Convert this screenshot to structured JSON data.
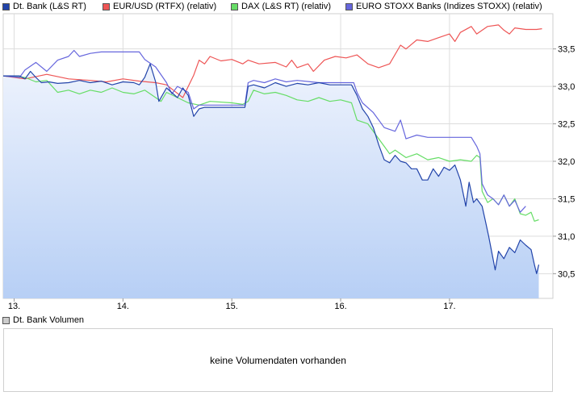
{
  "legend": [
    {
      "label": "Dt. Bank (L&S RT)",
      "color": "#2244aa"
    },
    {
      "label": "EUR/USD (RTFX) (relativ)",
      "color": "#ee5555"
    },
    {
      "label": "DAX (L&S RT) (relativ)",
      "color": "#66dd66"
    },
    {
      "label": "EURO STOXX Banks (Indizes STOXX) (relativ)",
      "color": "#6666dd"
    }
  ],
  "volume": {
    "legend_label": "Dt. Bank Volumen",
    "message": "keine Volumendaten vorhanden"
  },
  "chart_data": {
    "type": "line",
    "x_ticks": [
      "13.",
      "14.",
      "15.",
      "16.",
      "17."
    ],
    "y_ticks": [
      "30,5",
      "31,0",
      "31,5",
      "32,0",
      "32,5",
      "33,0",
      "33,5"
    ],
    "ylim": [
      30.17,
      33.97
    ],
    "xlim": [
      12.9,
      17.95
    ],
    "grid": true,
    "series": [
      {
        "name": "Dt. Bank (L&S RT)",
        "color": "#2244aa",
        "area": true,
        "points": [
          [
            12.9,
            33.14
          ],
          [
            13.05,
            33.14
          ],
          [
            13.1,
            33.1
          ],
          [
            13.15,
            33.2
          ],
          [
            13.2,
            33.12
          ],
          [
            13.25,
            33.05
          ],
          [
            13.32,
            33.06
          ],
          [
            13.4,
            33.04
          ],
          [
            13.5,
            33.05
          ],
          [
            13.6,
            33.08
          ],
          [
            13.7,
            33.05
          ],
          [
            13.8,
            33.07
          ],
          [
            13.9,
            33.02
          ],
          [
            14.0,
            33.06
          ],
          [
            14.1,
            33.05
          ],
          [
            14.15,
            33.02
          ],
          [
            14.2,
            33.12
          ],
          [
            14.25,
            33.3
          ],
          [
            14.3,
            33.06
          ],
          [
            14.33,
            32.8
          ],
          [
            14.4,
            32.98
          ],
          [
            14.5,
            32.85
          ],
          [
            14.55,
            32.98
          ],
          [
            14.6,
            32.88
          ],
          [
            14.65,
            32.6
          ],
          [
            14.7,
            32.7
          ],
          [
            14.75,
            32.72
          ],
          [
            14.85,
            32.72
          ],
          [
            15.0,
            32.72
          ],
          [
            15.12,
            32.72
          ],
          [
            15.15,
            33.0
          ],
          [
            15.2,
            33.02
          ],
          [
            15.3,
            32.98
          ],
          [
            15.4,
            33.05
          ],
          [
            15.5,
            33.0
          ],
          [
            15.6,
            33.04
          ],
          [
            15.7,
            33.02
          ],
          [
            15.8,
            33.05
          ],
          [
            15.9,
            33.02
          ],
          [
            16.0,
            33.02
          ],
          [
            16.1,
            33.02
          ],
          [
            16.15,
            32.88
          ],
          [
            16.2,
            32.7
          ],
          [
            16.25,
            32.6
          ],
          [
            16.3,
            32.45
          ],
          [
            16.35,
            32.22
          ],
          [
            16.4,
            32.02
          ],
          [
            16.45,
            31.98
          ],
          [
            16.5,
            32.08
          ],
          [
            16.55,
            32.0
          ],
          [
            16.6,
            31.98
          ],
          [
            16.65,
            31.9
          ],
          [
            16.7,
            31.9
          ],
          [
            16.75,
            31.75
          ],
          [
            16.8,
            31.75
          ],
          [
            16.85,
            31.9
          ],
          [
            16.9,
            31.8
          ],
          [
            16.95,
            31.92
          ],
          [
            17.0,
            31.88
          ],
          [
            17.05,
            31.95
          ],
          [
            17.1,
            31.75
          ],
          [
            17.15,
            31.4
          ],
          [
            17.18,
            31.72
          ],
          [
            17.22,
            31.45
          ],
          [
            17.25,
            31.5
          ],
          [
            17.3,
            31.4
          ],
          [
            17.33,
            31.2
          ],
          [
            17.36,
            31.0
          ],
          [
            17.4,
            30.7
          ],
          [
            17.42,
            30.55
          ],
          [
            17.45,
            30.8
          ],
          [
            17.5,
            30.7
          ],
          [
            17.55,
            30.85
          ],
          [
            17.6,
            30.78
          ],
          [
            17.65,
            30.95
          ],
          [
            17.7,
            30.88
          ],
          [
            17.75,
            30.82
          ],
          [
            17.78,
            30.62
          ],
          [
            17.8,
            30.5
          ],
          [
            17.82,
            30.62
          ]
        ]
      },
      {
        "name": "EUR/USD (RTFX) (relativ)",
        "color": "#ee5555",
        "area": false,
        "points": [
          [
            12.9,
            33.14
          ],
          [
            13.1,
            33.1
          ],
          [
            13.3,
            33.16
          ],
          [
            13.5,
            33.1
          ],
          [
            13.7,
            33.08
          ],
          [
            13.85,
            33.06
          ],
          [
            14.0,
            33.1
          ],
          [
            14.15,
            33.07
          ],
          [
            14.3,
            33.05
          ],
          [
            14.4,
            33.02
          ],
          [
            14.55,
            32.85
          ],
          [
            14.65,
            33.15
          ],
          [
            14.7,
            33.35
          ],
          [
            14.75,
            33.3
          ],
          [
            14.8,
            33.4
          ],
          [
            14.9,
            33.34
          ],
          [
            15.0,
            33.36
          ],
          [
            15.1,
            33.3
          ],
          [
            15.15,
            33.35
          ],
          [
            15.25,
            33.3
          ],
          [
            15.4,
            33.32
          ],
          [
            15.5,
            33.26
          ],
          [
            15.55,
            33.35
          ],
          [
            15.6,
            33.25
          ],
          [
            15.7,
            33.3
          ],
          [
            15.75,
            33.2
          ],
          [
            15.85,
            33.35
          ],
          [
            15.95,
            33.4
          ],
          [
            16.05,
            33.38
          ],
          [
            16.15,
            33.42
          ],
          [
            16.25,
            33.3
          ],
          [
            16.35,
            33.25
          ],
          [
            16.45,
            33.3
          ],
          [
            16.55,
            33.55
          ],
          [
            16.6,
            33.5
          ],
          [
            16.7,
            33.62
          ],
          [
            16.8,
            33.6
          ],
          [
            16.9,
            33.65
          ],
          [
            17.0,
            33.7
          ],
          [
            17.05,
            33.6
          ],
          [
            17.1,
            33.72
          ],
          [
            17.2,
            33.8
          ],
          [
            17.25,
            33.7
          ],
          [
            17.35,
            33.8
          ],
          [
            17.45,
            33.82
          ],
          [
            17.5,
            33.75
          ],
          [
            17.55,
            33.7
          ],
          [
            17.6,
            33.78
          ],
          [
            17.7,
            33.76
          ],
          [
            17.8,
            33.76
          ],
          [
            17.85,
            33.77
          ]
        ]
      },
      {
        "name": "DAX (L&S RT) (relativ)",
        "color": "#66dd66",
        "area": false,
        "points": [
          [
            12.9,
            33.14
          ],
          [
            13.1,
            33.12
          ],
          [
            13.2,
            33.06
          ],
          [
            13.3,
            33.08
          ],
          [
            13.4,
            32.92
          ],
          [
            13.5,
            32.95
          ],
          [
            13.6,
            32.9
          ],
          [
            13.7,
            32.95
          ],
          [
            13.8,
            32.92
          ],
          [
            13.9,
            32.98
          ],
          [
            14.0,
            32.92
          ],
          [
            14.1,
            32.9
          ],
          [
            14.2,
            32.95
          ],
          [
            14.3,
            32.85
          ],
          [
            14.35,
            32.8
          ],
          [
            14.4,
            32.92
          ],
          [
            14.5,
            32.85
          ],
          [
            14.6,
            32.78
          ],
          [
            14.7,
            32.75
          ],
          [
            14.8,
            32.8
          ],
          [
            15.0,
            32.78
          ],
          [
            15.1,
            32.76
          ],
          [
            15.15,
            32.8
          ],
          [
            15.2,
            32.95
          ],
          [
            15.3,
            32.9
          ],
          [
            15.4,
            32.92
          ],
          [
            15.5,
            32.88
          ],
          [
            15.6,
            32.82
          ],
          [
            15.7,
            32.8
          ],
          [
            15.8,
            32.85
          ],
          [
            15.9,
            32.8
          ],
          [
            16.0,
            32.82
          ],
          [
            16.1,
            32.78
          ],
          [
            16.15,
            32.55
          ],
          [
            16.25,
            32.5
          ],
          [
            16.35,
            32.3
          ],
          [
            16.4,
            32.2
          ],
          [
            16.45,
            32.1
          ],
          [
            16.5,
            32.15
          ],
          [
            16.6,
            32.05
          ],
          [
            16.7,
            32.1
          ],
          [
            16.8,
            32.02
          ],
          [
            16.9,
            32.05
          ],
          [
            17.0,
            32.0
          ],
          [
            17.1,
            32.02
          ],
          [
            17.2,
            32.0
          ],
          [
            17.25,
            32.08
          ],
          [
            17.28,
            32.05
          ],
          [
            17.3,
            31.6
          ],
          [
            17.35,
            31.45
          ],
          [
            17.4,
            31.5
          ],
          [
            17.45,
            31.42
          ],
          [
            17.5,
            31.55
          ],
          [
            17.55,
            31.4
          ],
          [
            17.6,
            31.5
          ],
          [
            17.65,
            31.3
          ],
          [
            17.7,
            31.28
          ],
          [
            17.75,
            31.32
          ],
          [
            17.78,
            31.2
          ],
          [
            17.82,
            31.22
          ]
        ]
      },
      {
        "name": "EURO STOXX Banks (Indizes STOXX) (relativ)",
        "color": "#6666dd",
        "area": false,
        "points": [
          [
            12.9,
            33.14
          ],
          [
            13.05,
            33.12
          ],
          [
            13.1,
            33.22
          ],
          [
            13.2,
            33.32
          ],
          [
            13.3,
            33.2
          ],
          [
            13.4,
            33.35
          ],
          [
            13.5,
            33.4
          ],
          [
            13.55,
            33.48
          ],
          [
            13.6,
            33.4
          ],
          [
            13.7,
            33.44
          ],
          [
            13.8,
            33.46
          ],
          [
            14.0,
            33.46
          ],
          [
            14.15,
            33.46
          ],
          [
            14.2,
            33.36
          ],
          [
            14.3,
            33.26
          ],
          [
            14.4,
            33.05
          ],
          [
            14.45,
            32.9
          ],
          [
            14.5,
            33.0
          ],
          [
            14.6,
            32.92
          ],
          [
            14.65,
            32.7
          ],
          [
            14.7,
            32.75
          ],
          [
            14.85,
            32.75
          ],
          [
            15.0,
            32.75
          ],
          [
            15.12,
            32.75
          ],
          [
            15.15,
            33.05
          ],
          [
            15.2,
            33.08
          ],
          [
            15.3,
            33.05
          ],
          [
            15.4,
            33.1
          ],
          [
            15.5,
            33.06
          ],
          [
            15.6,
            33.08
          ],
          [
            15.8,
            33.05
          ],
          [
            16.0,
            33.05
          ],
          [
            16.12,
            33.05
          ],
          [
            16.15,
            32.92
          ],
          [
            16.2,
            32.78
          ],
          [
            16.3,
            32.65
          ],
          [
            16.4,
            32.45
          ],
          [
            16.5,
            32.4
          ],
          [
            16.55,
            32.55
          ],
          [
            16.6,
            32.3
          ],
          [
            16.7,
            32.35
          ],
          [
            16.8,
            32.32
          ],
          [
            17.0,
            32.32
          ],
          [
            17.1,
            32.32
          ],
          [
            17.2,
            32.32
          ],
          [
            17.25,
            32.2
          ],
          [
            17.28,
            32.1
          ],
          [
            17.3,
            31.7
          ],
          [
            17.35,
            31.55
          ],
          [
            17.4,
            31.5
          ],
          [
            17.45,
            31.42
          ],
          [
            17.5,
            31.55
          ],
          [
            17.55,
            31.4
          ],
          [
            17.6,
            31.48
          ],
          [
            17.65,
            31.32
          ],
          [
            17.7,
            31.4
          ]
        ]
      }
    ]
  }
}
